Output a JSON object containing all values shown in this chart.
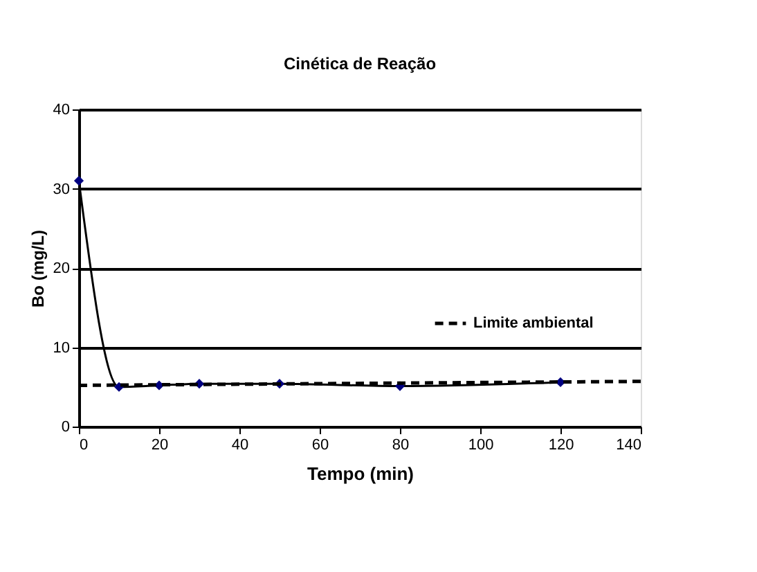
{
  "chart_data": {
    "type": "line",
    "title": "Cinética de Reação",
    "xlabel": "Tempo (min)",
    "ylabel": "Bo (mg/L)",
    "xlim": [
      0,
      140
    ],
    "xticks": [
      0,
      20,
      40,
      60,
      80,
      100,
      120,
      140
    ],
    "ylim": [
      0,
      40
    ],
    "yticks": [
      0,
      10,
      20,
      30,
      40
    ],
    "grid": "y",
    "legend": "right",
    "series": [
      {
        "x": [
          0,
          10,
          20,
          30,
          50,
          80,
          120
        ],
        "values": [
          31,
          5,
          5.2,
          5.4,
          5.4,
          5.1,
          5.6
        ],
        "color": "#000080",
        "marker": "diamond",
        "line_style": "solid"
      },
      {
        "name": "Limite ambiental",
        "x": [
          0,
          140
        ],
        "values": [
          5.2,
          5.7
        ],
        "color": "#000000",
        "marker": "none",
        "line_style": "dashed"
      }
    ]
  }
}
